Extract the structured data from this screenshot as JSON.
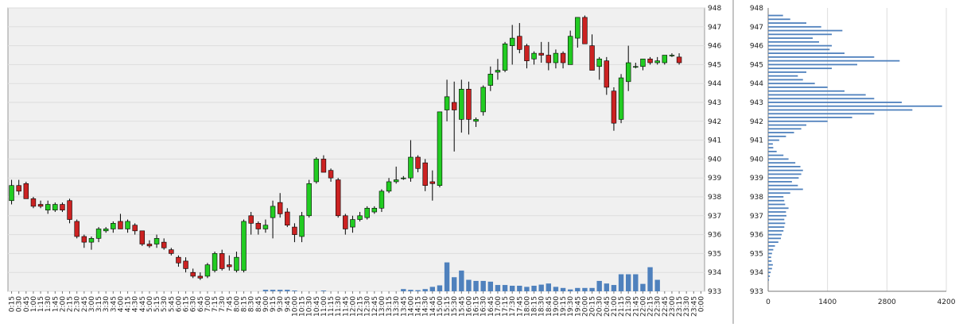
{
  "chart_data": [
    {
      "type": "candlestick",
      "price_axis": {
        "min": 933,
        "max": 948,
        "ticks": [
          "948",
          "947",
          "946",
          "945",
          "944",
          "943",
          "942",
          "941",
          "940",
          "939",
          "938",
          "937",
          "936",
          "935",
          "934",
          "933"
        ]
      },
      "time_labels": [
        "0:15",
        "0:30",
        "0:45",
        "1:00",
        "1:15",
        "1:30",
        "1:45",
        "2:00",
        "2:15",
        "2:30",
        "2:45",
        "3:00",
        "3:15",
        "3:30",
        "3:45",
        "4:00",
        "4:15",
        "4:30",
        "4:45",
        "5:00",
        "5:15",
        "5:30",
        "5:45",
        "6:00",
        "6:15",
        "6:30",
        "6:45",
        "7:00",
        "7:15",
        "7:30",
        "7:45",
        "8:00",
        "8:15",
        "8:30",
        "8:45",
        "9:00",
        "9:15",
        "9:30",
        "9:45",
        "10:00",
        "10:15",
        "10:30",
        "10:45",
        "11:00",
        "11:15",
        "11:30",
        "11:45",
        "12:00",
        "12:15",
        "12:30",
        "12:45",
        "13:00",
        "13:15",
        "13:30",
        "13:45",
        "14:00",
        "14:15",
        "14:30",
        "14:45",
        "15:00",
        "15:15",
        "15:30",
        "15:45",
        "16:00",
        "16:15",
        "16:30",
        "16:45",
        "17:00",
        "17:15",
        "17:30",
        "17:45",
        "18:00",
        "18:15",
        "18:30",
        "18:45",
        "19:00",
        "19:15",
        "19:30",
        "19:45",
        "20:00",
        "20:15",
        "20:30",
        "20:45",
        "21:00",
        "21:15",
        "21:30",
        "21:45",
        "22:00",
        "22:15",
        "22:30",
        "22:45",
        "23:00",
        "23:15",
        "23:30",
        "23:45",
        "0:00"
      ],
      "candles": [
        {
          "o": 937.8,
          "h": 938.9,
          "l": 937.6,
          "c": 938.6
        },
        {
          "o": 938.6,
          "h": 938.9,
          "l": 938.1,
          "c": 938.3
        },
        {
          "o": 938.7,
          "h": 938.8,
          "l": 937.9,
          "c": 937.9
        },
        {
          "o": 937.9,
          "h": 938.0,
          "l": 937.4,
          "c": 937.5
        },
        {
          "o": 937.6,
          "h": 937.8,
          "l": 937.4,
          "c": 937.5
        },
        {
          "o": 937.3,
          "h": 937.8,
          "l": 937.1,
          "c": 937.6
        },
        {
          "o": 937.3,
          "h": 937.7,
          "l": 937.2,
          "c": 937.6
        },
        {
          "o": 937.6,
          "h": 937.7,
          "l": 937.2,
          "c": 937.3
        },
        {
          "o": 937.8,
          "h": 937.9,
          "l": 936.6,
          "c": 936.8
        },
        {
          "o": 936.7,
          "h": 936.8,
          "l": 935.8,
          "c": 935.9
        },
        {
          "o": 935.9,
          "h": 936.0,
          "l": 935.3,
          "c": 935.6
        },
        {
          "o": 935.6,
          "h": 935.9,
          "l": 935.2,
          "c": 935.8
        },
        {
          "o": 935.8,
          "h": 936.4,
          "l": 935.6,
          "c": 936.3
        },
        {
          "o": 936.2,
          "h": 936.4,
          "l": 936.1,
          "c": 936.3
        },
        {
          "o": 936.3,
          "h": 936.7,
          "l": 936.1,
          "c": 936.6
        },
        {
          "o": 936.7,
          "h": 937.1,
          "l": 936.3,
          "c": 936.3
        },
        {
          "o": 936.3,
          "h": 936.8,
          "l": 936.1,
          "c": 936.7
        },
        {
          "o": 936.5,
          "h": 936.6,
          "l": 936.0,
          "c": 936.2
        },
        {
          "o": 936.2,
          "h": 936.2,
          "l": 935.4,
          "c": 935.5
        },
        {
          "o": 935.5,
          "h": 935.7,
          "l": 935.3,
          "c": 935.4
        },
        {
          "o": 935.5,
          "h": 936.0,
          "l": 935.3,
          "c": 935.8
        },
        {
          "o": 935.6,
          "h": 935.8,
          "l": 935.2,
          "c": 935.3
        },
        {
          "o": 935.2,
          "h": 935.3,
          "l": 934.9,
          "c": 935.0
        },
        {
          "o": 934.8,
          "h": 934.9,
          "l": 934.3,
          "c": 934.5
        },
        {
          "o": 934.6,
          "h": 934.8,
          "l": 934.0,
          "c": 934.2
        },
        {
          "o": 934.0,
          "h": 934.2,
          "l": 933.7,
          "c": 933.8
        },
        {
          "o": 933.8,
          "h": 934.0,
          "l": 933.6,
          "c": 933.7
        },
        {
          "o": 933.8,
          "h": 934.5,
          "l": 933.7,
          "c": 934.4
        },
        {
          "o": 934.1,
          "h": 935.1,
          "l": 934.0,
          "c": 935.0
        },
        {
          "o": 935.0,
          "h": 935.2,
          "l": 934.1,
          "c": 934.2
        },
        {
          "o": 934.4,
          "h": 934.9,
          "l": 934.1,
          "c": 934.3
        },
        {
          "o": 934.1,
          "h": 935.1,
          "l": 934.0,
          "c": 934.8
        },
        {
          "o": 934.1,
          "h": 936.8,
          "l": 934.0,
          "c": 936.7
        },
        {
          "o": 937.0,
          "h": 937.2,
          "l": 936.0,
          "c": 936.6
        },
        {
          "o": 936.6,
          "h": 936.7,
          "l": 936.0,
          "c": 936.3
        },
        {
          "o": 936.3,
          "h": 936.8,
          "l": 936.1,
          "c": 936.5
        },
        {
          "o": 936.9,
          "h": 937.8,
          "l": 935.8,
          "c": 937.5
        },
        {
          "o": 937.7,
          "h": 938.2,
          "l": 936.9,
          "c": 937.1
        },
        {
          "o": 937.2,
          "h": 937.4,
          "l": 936.4,
          "c": 936.5
        },
        {
          "o": 936.4,
          "h": 936.6,
          "l": 935.6,
          "c": 936.0
        },
        {
          "o": 935.9,
          "h": 937.2,
          "l": 935.6,
          "c": 937.0
        },
        {
          "o": 937.0,
          "h": 938.9,
          "l": 936.9,
          "c": 938.7
        },
        {
          "o": 938.8,
          "h": 940.1,
          "l": 938.7,
          "c": 940.0
        },
        {
          "o": 940.0,
          "h": 940.2,
          "l": 939.3,
          "c": 939.3
        },
        {
          "o": 939.4,
          "h": 939.5,
          "l": 938.8,
          "c": 939.0
        },
        {
          "o": 938.9,
          "h": 939.0,
          "l": 936.9,
          "c": 937.0
        },
        {
          "o": 937.0,
          "h": 937.1,
          "l": 936.0,
          "c": 936.3
        },
        {
          "o": 936.4,
          "h": 937.0,
          "l": 936.1,
          "c": 936.8
        },
        {
          "o": 936.8,
          "h": 937.2,
          "l": 936.7,
          "c": 937.0
        },
        {
          "o": 936.9,
          "h": 937.5,
          "l": 936.8,
          "c": 937.4
        },
        {
          "o": 937.2,
          "h": 937.5,
          "l": 937.1,
          "c": 937.4
        },
        {
          "o": 937.4,
          "h": 938.4,
          "l": 937.2,
          "c": 938.3
        },
        {
          "o": 938.3,
          "h": 939.0,
          "l": 938.2,
          "c": 938.8
        },
        {
          "o": 938.8,
          "h": 939.6,
          "l": 938.7,
          "c": 938.9
        },
        {
          "o": 939.0,
          "h": 939.1,
          "l": 938.9,
          "c": 939.0
        },
        {
          "o": 939.0,
          "h": 941.0,
          "l": 938.8,
          "c": 940.1
        },
        {
          "o": 940.1,
          "h": 940.2,
          "l": 939.3,
          "c": 939.5
        },
        {
          "o": 939.8,
          "h": 940.0,
          "l": 938.3,
          "c": 938.6
        },
        {
          "o": 938.8,
          "h": 939.4,
          "l": 937.8,
          "c": 938.7
        },
        {
          "o": 938.6,
          "h": 942.5,
          "l": 938.5,
          "c": 942.5
        },
        {
          "o": 942.6,
          "h": 944.2,
          "l": 942.0,
          "c": 943.3
        },
        {
          "o": 943.0,
          "h": 944.1,
          "l": 940.4,
          "c": 942.6
        },
        {
          "o": 942.1,
          "h": 944.2,
          "l": 941.4,
          "c": 943.7
        },
        {
          "o": 943.7,
          "h": 944.1,
          "l": 941.3,
          "c": 942.1
        },
        {
          "o": 942.0,
          "h": 942.2,
          "l": 941.7,
          "c": 942.1
        },
        {
          "o": 942.5,
          "h": 943.9,
          "l": 942.3,
          "c": 943.8
        },
        {
          "o": 943.9,
          "h": 944.9,
          "l": 943.6,
          "c": 944.5
        },
        {
          "o": 944.6,
          "h": 945.3,
          "l": 944.2,
          "c": 944.7
        },
        {
          "o": 944.7,
          "h": 946.2,
          "l": 944.6,
          "c": 946.1
        },
        {
          "o": 946.0,
          "h": 947.1,
          "l": 945.0,
          "c": 946.4
        },
        {
          "o": 946.5,
          "h": 947.2,
          "l": 945.6,
          "c": 945.8
        },
        {
          "o": 946.0,
          "h": 946.1,
          "l": 944.8,
          "c": 945.2
        },
        {
          "o": 945.3,
          "h": 945.7,
          "l": 945.0,
          "c": 945.6
        },
        {
          "o": 945.6,
          "h": 946.2,
          "l": 945.1,
          "c": 945.5
        },
        {
          "o": 945.5,
          "h": 946.2,
          "l": 944.7,
          "c": 945.1
        },
        {
          "o": 945.1,
          "h": 945.8,
          "l": 944.8,
          "c": 945.6
        },
        {
          "o": 945.6,
          "h": 945.7,
          "l": 944.8,
          "c": 945.1
        },
        {
          "o": 945.0,
          "h": 946.8,
          "l": 945.0,
          "c": 946.5
        },
        {
          "o": 946.4,
          "h": 947.5,
          "l": 945.9,
          "c": 947.5
        },
        {
          "o": 947.5,
          "h": 947.6,
          "l": 946.1,
          "c": 946.1
        },
        {
          "o": 946.0,
          "h": 946.6,
          "l": 944.8,
          "c": 944.7
        },
        {
          "o": 944.9,
          "h": 945.4,
          "l": 944.2,
          "c": 945.3
        },
        {
          "o": 945.2,
          "h": 945.4,
          "l": 943.4,
          "c": 943.8
        },
        {
          "o": 943.6,
          "h": 943.8,
          "l": 941.5,
          "c": 941.9
        },
        {
          "o": 942.1,
          "h": 944.5,
          "l": 941.9,
          "c": 944.3
        },
        {
          "o": 944.1,
          "h": 946.0,
          "l": 943.6,
          "c": 945.1
        },
        {
          "o": 944.9,
          "h": 945.1,
          "l": 944.8,
          "c": 944.9
        },
        {
          "o": 944.9,
          "h": 945.3,
          "l": 944.7,
          "c": 945.3
        },
        {
          "o": 945.3,
          "h": 945.4,
          "l": 945.0,
          "c": 945.1
        },
        {
          "o": 945.1,
          "h": 945.4,
          "l": 945.0,
          "c": 945.2
        },
        {
          "o": 945.1,
          "h": 945.5,
          "l": 945.0,
          "c": 945.5
        },
        {
          "o": 945.5,
          "h": 945.6,
          "l": 945.4,
          "c": 945.5
        },
        {
          "o": 945.4,
          "h": 945.6,
          "l": 945.0,
          "c": 945.1
        }
      ],
      "volume": [
        0,
        0,
        0,
        0,
        0,
        0,
        0,
        0,
        0,
        0,
        0,
        0,
        0,
        0,
        0,
        0,
        0,
        0,
        0,
        0,
        0,
        0,
        0,
        0,
        0,
        0,
        0,
        0,
        0,
        0,
        0,
        0,
        0,
        0,
        0,
        0.4,
        0.4,
        0.4,
        0.4,
        0.2,
        0,
        0,
        0,
        0.2,
        0,
        0,
        0,
        0,
        0,
        0,
        0,
        0,
        0,
        0,
        0.6,
        0.4,
        0.3,
        0.6,
        1.2,
        1.6,
        7.8,
        3.8,
        5.6,
        3.1,
        2.8,
        2.8,
        2.6,
        1.7,
        1.7,
        1.5,
        1.5,
        1.2,
        1.5,
        1.8,
        2.1,
        1.2,
        0.9,
        0.5,
        0.9,
        0.9,
        0.9,
        2.8,
        2.1,
        1.7,
        4.6,
        4.6,
        4.6,
        2.0,
        6.5,
        3.1,
        0,
        0,
        0,
        0,
        0,
        0
      ],
      "colors": {
        "up": "#22cc22",
        "down": "#cc2222",
        "volume": "#4f81bd",
        "grid": "#dddddd",
        "plot_bg": "#f0f0f0"
      }
    },
    {
      "type": "bar",
      "orientation": "horizontal",
      "x_ticks": [
        "0",
        "1400",
        "2800",
        "4200"
      ],
      "xlim": [
        0,
        4200
      ],
      "y_ticks": [
        "948",
        "947",
        "946",
        "945",
        "944",
        "943",
        "942",
        "941",
        "940",
        "939",
        "938",
        "937",
        "936",
        "935",
        "934",
        "933"
      ],
      "ylim": [
        933,
        948
      ],
      "profile": [
        {
          "y": 933.6,
          "v": 20
        },
        {
          "y": 933.8,
          "v": 40
        },
        {
          "y": 934.0,
          "v": 60
        },
        {
          "y": 934.2,
          "v": 90
        },
        {
          "y": 934.4,
          "v": 110
        },
        {
          "y": 934.6,
          "v": 80
        },
        {
          "y": 934.8,
          "v": 70
        },
        {
          "y": 935.0,
          "v": 90
        },
        {
          "y": 935.2,
          "v": 120
        },
        {
          "y": 935.4,
          "v": 160
        },
        {
          "y": 935.6,
          "v": 240
        },
        {
          "y": 935.8,
          "v": 300
        },
        {
          "y": 936.0,
          "v": 320
        },
        {
          "y": 936.2,
          "v": 360
        },
        {
          "y": 936.4,
          "v": 380
        },
        {
          "y": 936.6,
          "v": 400
        },
        {
          "y": 936.8,
          "v": 380
        },
        {
          "y": 937.0,
          "v": 430
        },
        {
          "y": 937.2,
          "v": 420
        },
        {
          "y": 937.4,
          "v": 480
        },
        {
          "y": 937.6,
          "v": 400
        },
        {
          "y": 937.8,
          "v": 380
        },
        {
          "y": 938.0,
          "v": 360
        },
        {
          "y": 938.2,
          "v": 520
        },
        {
          "y": 938.4,
          "v": 820
        },
        {
          "y": 938.6,
          "v": 700
        },
        {
          "y": 938.8,
          "v": 560
        },
        {
          "y": 939.0,
          "v": 720
        },
        {
          "y": 939.2,
          "v": 780
        },
        {
          "y": 939.4,
          "v": 820
        },
        {
          "y": 939.6,
          "v": 760
        },
        {
          "y": 939.8,
          "v": 640
        },
        {
          "y": 940.0,
          "v": 480
        },
        {
          "y": 940.2,
          "v": 360
        },
        {
          "y": 940.4,
          "v": 200
        },
        {
          "y": 940.6,
          "v": 120
        },
        {
          "y": 940.8,
          "v": 110
        },
        {
          "y": 941.0,
          "v": 260
        },
        {
          "y": 941.2,
          "v": 420
        },
        {
          "y": 941.4,
          "v": 610
        },
        {
          "y": 941.6,
          "v": 780
        },
        {
          "y": 941.8,
          "v": 900
        },
        {
          "y": 942.0,
          "v": 1400
        },
        {
          "y": 942.2,
          "v": 1980
        },
        {
          "y": 942.4,
          "v": 2500
        },
        {
          "y": 942.6,
          "v": 3400
        },
        {
          "y": 942.8,
          "v": 4100
        },
        {
          "y": 943.0,
          "v": 3150
        },
        {
          "y": 943.2,
          "v": 2500
        },
        {
          "y": 943.4,
          "v": 2300
        },
        {
          "y": 943.6,
          "v": 1800
        },
        {
          "y": 943.8,
          "v": 1400
        },
        {
          "y": 944.0,
          "v": 1100
        },
        {
          "y": 944.2,
          "v": 820
        },
        {
          "y": 944.4,
          "v": 700
        },
        {
          "y": 944.6,
          "v": 900
        },
        {
          "y": 944.8,
          "v": 1500
        },
        {
          "y": 945.0,
          "v": 2100
        },
        {
          "y": 945.2,
          "v": 3100
        },
        {
          "y": 945.4,
          "v": 2500
        },
        {
          "y": 945.6,
          "v": 1800
        },
        {
          "y": 945.8,
          "v": 1450
        },
        {
          "y": 946.0,
          "v": 1500
        },
        {
          "y": 946.2,
          "v": 1200
        },
        {
          "y": 946.4,
          "v": 1050
        },
        {
          "y": 946.6,
          "v": 1500
        },
        {
          "y": 946.8,
          "v": 1750
        },
        {
          "y": 947.0,
          "v": 1250
        },
        {
          "y": 947.2,
          "v": 900
        },
        {
          "y": 947.4,
          "v": 520
        },
        {
          "y": 947.6,
          "v": 350
        }
      ],
      "colors": {
        "bar": "#4f81bd",
        "grid": "#dddddd"
      }
    }
  ]
}
